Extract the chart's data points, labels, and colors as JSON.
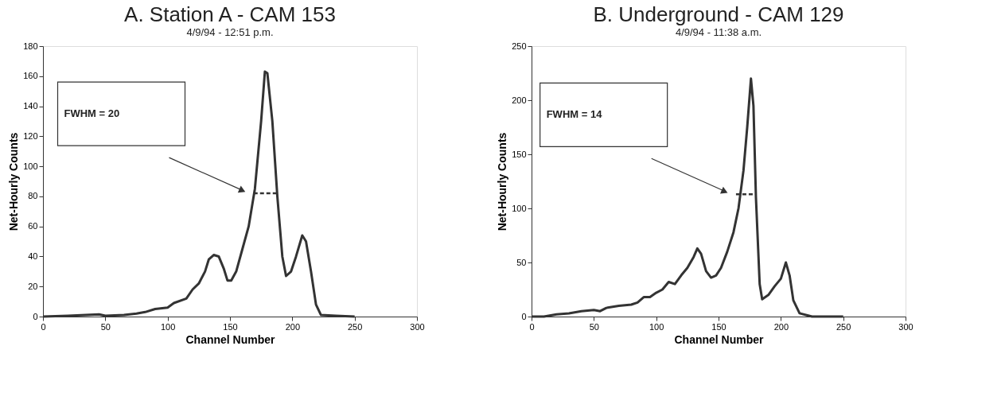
{
  "chart_data": [
    {
      "type": "line",
      "title": "A.  Station A - CAM 153",
      "subtitle": "4/9/94 - 12:51 p.m.",
      "xlabel": "Channel Number",
      "ylabel": "Net-Hourly Counts",
      "xlim": [
        0,
        300
      ],
      "ylim": [
        0,
        180
      ],
      "xticks": [
        0,
        50,
        100,
        150,
        200,
        250,
        300
      ],
      "yticks": [
        0,
        20,
        40,
        60,
        80,
        100,
        120,
        140,
        160,
        180
      ],
      "grid": false,
      "marker": "none",
      "line_style": "solid",
      "series": [
        {
          "color": "#333333",
          "x": [
            0,
            20,
            45,
            50,
            65,
            75,
            82,
            90,
            100,
            105,
            115,
            120,
            125,
            130,
            133,
            137,
            141,
            145,
            148,
            151,
            155,
            160,
            165,
            170,
            175,
            178,
            180,
            184,
            188,
            192,
            195,
            199,
            203,
            208,
            211,
            215,
            219,
            223,
            235,
            250
          ],
          "values": [
            0,
            0.5,
            1.5,
            0.5,
            1,
            2,
            3,
            5,
            6,
            9,
            12,
            18,
            22,
            30,
            38,
            41,
            40,
            32,
            24,
            24,
            30,
            45,
            60,
            85,
            130,
            163,
            162,
            130,
            80,
            40,
            27,
            30,
            40,
            54,
            50,
            30,
            8,
            1,
            0.5,
            0
          ]
        },
        {
          "color": "#333333",
          "line_style": "dashed",
          "x": [
            169,
            189
          ],
          "values": [
            82,
            82
          ]
        }
      ],
      "annotations": [
        "FWHM  = 20"
      ]
    },
    {
      "type": "line",
      "title": "B.  Underground - CAM 129",
      "subtitle": "4/9/94 - 11:38 a.m.",
      "xlabel": "Channel Number",
      "ylabel": "Net-Hourly Counts",
      "xlim": [
        0,
        300
      ],
      "ylim": [
        0,
        250
      ],
      "xticks": [
        0,
        50,
        100,
        150,
        200,
        250,
        300
      ],
      "yticks": [
        0,
        50,
        100,
        150,
        200,
        250
      ],
      "grid": false,
      "marker": "none",
      "line_style": "solid",
      "series": [
        {
          "color": "#333333",
          "x": [
            0,
            10,
            20,
            30,
            40,
            50,
            55,
            60,
            70,
            80,
            85,
            90,
            95,
            100,
            105,
            110,
            115,
            120,
            125,
            130,
            133,
            136,
            140,
            144,
            148,
            152,
            157,
            162,
            166,
            170,
            173,
            176,
            178,
            180,
            183,
            185,
            190,
            195,
            200,
            204,
            207,
            210,
            215,
            225,
            250
          ],
          "values": [
            0,
            0,
            2,
            3,
            5,
            6,
            5,
            8,
            10,
            11,
            13,
            18,
            18,
            22,
            25,
            32,
            30,
            38,
            45,
            55,
            63,
            58,
            42,
            36,
            38,
            45,
            60,
            78,
            100,
            135,
            175,
            220,
            195,
            110,
            30,
            16,
            20,
            28,
            35,
            50,
            38,
            15,
            3,
            0,
            0
          ]
        },
        {
          "color": "#333333",
          "line_style": "dashed",
          "x": [
            164,
            179
          ],
          "values": [
            113,
            113
          ]
        }
      ],
      "annotations": [
        "FWHM  = 14"
      ]
    }
  ]
}
